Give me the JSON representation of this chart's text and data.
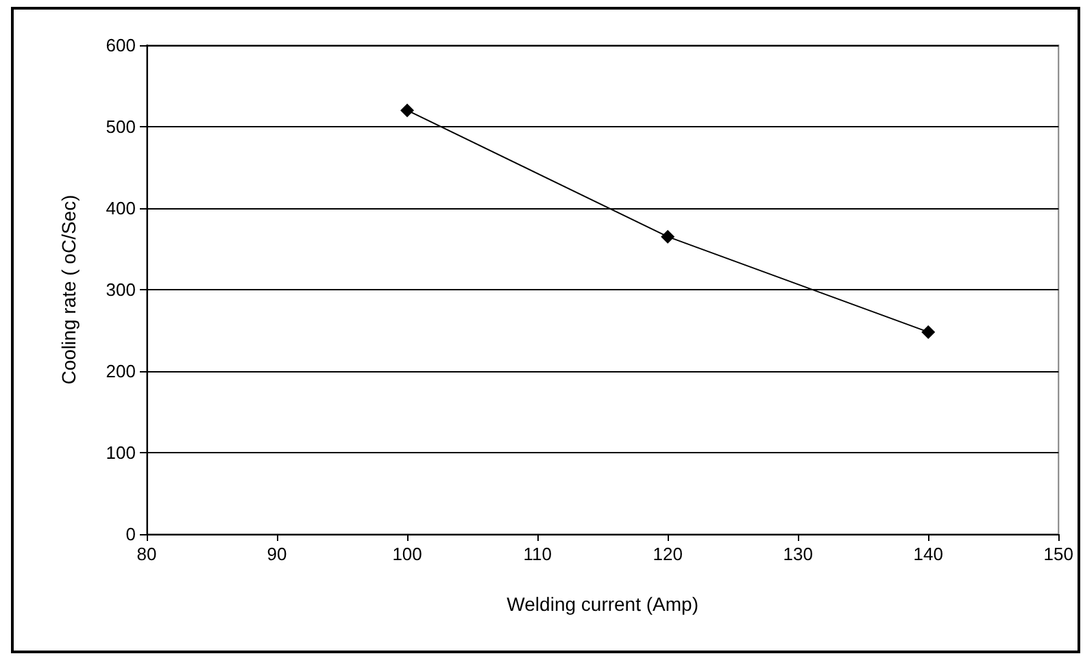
{
  "chart_data": {
    "type": "line",
    "xlabel": "Welding current (Amp)",
    "ylabel": "Cooling rate ( oC/Sec)",
    "x": [
      100,
      120,
      140
    ],
    "series": [
      {
        "color": "#000000",
        "values": [
          520,
          365,
          248
        ]
      }
    ],
    "xlim": [
      80,
      150
    ],
    "xticks": [
      80,
      90,
      100,
      110,
      120,
      130,
      140,
      150
    ],
    "ylim": [
      0,
      600
    ],
    "yticks": [
      0,
      100,
      200,
      300,
      400,
      500,
      600
    ],
    "grid": "y",
    "marker": "diamond",
    "line_style": "solid"
  }
}
